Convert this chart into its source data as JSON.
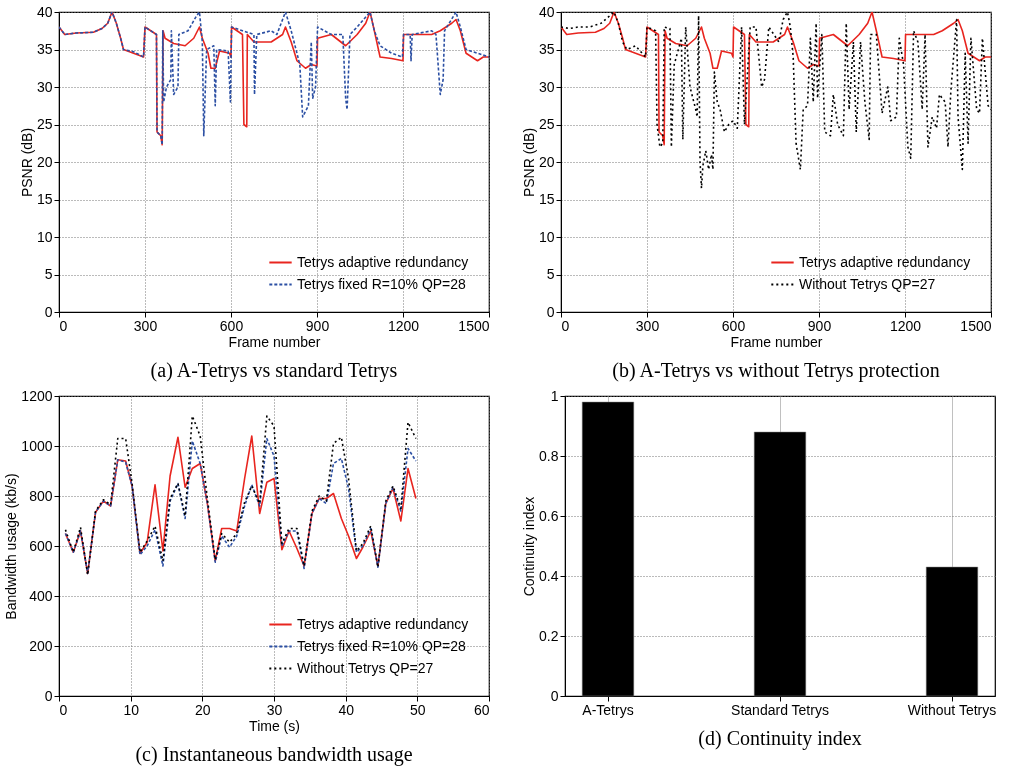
{
  "chart_data": [
    {
      "type": "line",
      "title": "(a) A-Tetrys vs standard Tetrys",
      "xlabel": "Frame number",
      "ylabel": "PSNR (dB)",
      "xlim": [
        0,
        1500
      ],
      "ylim": [
        0,
        40
      ],
      "xticks": [
        0,
        300,
        600,
        900,
        1200,
        1500
      ],
      "yticks": [
        0,
        5,
        10,
        15,
        20,
        25,
        30,
        35,
        40
      ],
      "grid": true,
      "legend": "bottom right",
      "series": [
        {
          "name": "Tetrys adaptive redundancy",
          "color": "#e8251f",
          "line_style": "solid",
          "x": [
            0,
            20,
            60,
            120,
            150,
            170,
            185,
            200,
            215,
            225,
            260,
            295,
            300,
            340,
            342,
            355,
            360,
            363,
            370,
            400,
            440,
            470,
            490,
            500,
            520,
            530,
            545,
            560,
            595,
            600,
            602,
            640,
            645,
            655,
            657,
            680,
            740,
            780,
            790,
            810,
            830,
            860,
            880,
            900,
            902,
            950,
            1000,
            1040,
            1070,
            1085,
            1100,
            1120,
            1160,
            1200,
            1202,
            1250,
            1300,
            1330,
            1370,
            1385,
            1400,
            1420,
            1460,
            1480,
            1500
          ],
          "values": [
            38,
            37,
            37.2,
            37.3,
            37.8,
            38.5,
            40,
            38.5,
            36.5,
            35,
            34.5,
            34,
            38,
            37,
            24,
            23.5,
            22.3,
            37.5,
            36.5,
            35.8,
            35.5,
            36.5,
            38,
            36.5,
            34.5,
            32.5,
            32.5,
            34.8,
            34.5,
            34,
            38,
            37,
            25,
            24.7,
            37,
            36,
            36,
            37,
            38,
            36,
            33.5,
            32.5,
            33,
            32.8,
            36.5,
            37,
            35.5,
            37,
            38.5,
            40,
            37.5,
            34,
            33.8,
            33.5,
            37,
            37,
            37,
            37.5,
            38.5,
            39,
            37.5,
            34.5,
            33.5,
            34,
            34
          ]
        },
        {
          "name": "Tetrys fixed R=10% QP=28",
          "color": "#2b4fa3",
          "line_style": "dashed",
          "x": [
            0,
            20,
            60,
            120,
            150,
            170,
            185,
            200,
            215,
            225,
            260,
            295,
            300,
            340,
            342,
            355,
            360,
            362,
            365,
            375,
            390,
            392,
            400,
            415,
            418,
            450,
            480,
            490,
            500,
            505,
            515,
            540,
            545,
            550,
            590,
            598,
            602,
            640,
            680,
            682,
            690,
            740,
            760,
            790,
            810,
            840,
            850,
            870,
            880,
            885,
            895,
            902,
            950,
            990,
            1000,
            1005,
            1015,
            1040,
            1085,
            1100,
            1120,
            1160,
            1198,
            1202,
            1225,
            1228,
            1232,
            1300,
            1315,
            1330,
            1340,
            1345,
            1385,
            1400,
            1420,
            1460,
            1500
          ],
          "values": [
            38,
            37,
            37.2,
            37.3,
            37.8,
            38.5,
            40,
            38.5,
            36.5,
            35,
            34.7,
            34,
            38,
            37,
            24,
            23.5,
            22.3,
            37.5,
            28,
            30,
            31,
            37.5,
            29,
            30,
            37,
            37.5,
            39.5,
            40,
            36,
            23.5,
            35,
            35.5,
            27.5,
            35,
            34.8,
            28,
            38,
            37.5,
            37,
            29,
            37,
            37.5,
            37,
            40,
            37.5,
            33,
            26,
            27.5,
            36,
            28.5,
            30,
            38,
            37,
            37,
            28.5,
            27,
            37,
            38,
            40,
            37.5,
            35.5,
            34.5,
            34,
            37,
            37,
            33.5,
            37,
            37.5,
            37,
            29,
            31,
            37.5,
            40,
            38,
            35,
            34.5,
            34
          ]
        }
      ]
    },
    {
      "type": "line",
      "title": "(b) A-Tetrys vs without Tetrys protection",
      "xlabel": "Frame number",
      "ylabel": "PSNR (dB)",
      "xlim": [
        0,
        1500
      ],
      "ylim": [
        0,
        40
      ],
      "xticks": [
        0,
        300,
        600,
        900,
        1200,
        1500
      ],
      "yticks": [
        0,
        5,
        10,
        15,
        20,
        25,
        30,
        35,
        40
      ],
      "grid": true,
      "legend": "bottom right",
      "series": [
        {
          "name": "Tetrys adaptive redundancy",
          "color": "#e8251f",
          "line_style": "solid",
          "x": [
            0,
            20,
            60,
            120,
            150,
            170,
            185,
            200,
            215,
            225,
            260,
            295,
            300,
            340,
            342,
            355,
            360,
            363,
            370,
            400,
            440,
            470,
            490,
            500,
            520,
            530,
            545,
            560,
            595,
            600,
            602,
            640,
            645,
            655,
            657,
            680,
            740,
            780,
            790,
            810,
            830,
            860,
            880,
            900,
            902,
            950,
            1000,
            1040,
            1070,
            1085,
            1100,
            1120,
            1160,
            1200,
            1202,
            1250,
            1300,
            1330,
            1370,
            1385,
            1400,
            1420,
            1460,
            1480,
            1500
          ],
          "values": [
            38,
            37,
            37.2,
            37.3,
            37.8,
            38.5,
            40,
            38.5,
            36.5,
            35,
            34.5,
            34,
            38,
            37,
            24,
            23.5,
            22.3,
            37.5,
            36.5,
            35.8,
            35.5,
            36.5,
            38,
            36.5,
            34.5,
            32.5,
            32.5,
            34.8,
            34.5,
            34,
            38,
            37,
            25,
            24.7,
            37,
            36,
            36,
            37,
            38,
            36,
            33.5,
            32.5,
            33,
            32.8,
            36.5,
            37,
            35.5,
            37,
            38.5,
            40,
            37.5,
            34,
            33.8,
            33.5,
            37,
            37,
            37,
            37.5,
            38.5,
            39,
            37.5,
            34.5,
            33.5,
            34,
            34
          ]
        },
        {
          "name": "Without Tetrys QP=27",
          "color": "#000000",
          "line_style": "dotted",
          "x": [
            0,
            30,
            60,
            100,
            140,
            185,
            200,
            215,
            230,
            260,
            295,
            300,
            330,
            335,
            345,
            355,
            360,
            380,
            385,
            395,
            420,
            425,
            435,
            450,
            470,
            475,
            480,
            485,
            490,
            495,
            505,
            515,
            525,
            530,
            535,
            545,
            555,
            570,
            585,
            600,
            615,
            630,
            640,
            660,
            680,
            700,
            710,
            725,
            760,
            775,
            790,
            800,
            810,
            820,
            835,
            845,
            860,
            870,
            880,
            890,
            895,
            910,
            920,
            940,
            950,
            965,
            985,
            995,
            1005,
            1020,
            1030,
            1045,
            1060,
            1075,
            1080,
            1100,
            1120,
            1140,
            1150,
            1170,
            1180,
            1195,
            1210,
            1220,
            1230,
            1245,
            1260,
            1270,
            1280,
            1295,
            1310,
            1320,
            1340,
            1350,
            1360,
            1380,
            1385,
            1400,
            1410,
            1420,
            1430,
            1450,
            1460,
            1470,
            1490,
            1500
          ],
          "values": [
            38,
            37.8,
            38,
            38,
            38.5,
            40,
            38.5,
            36,
            35,
            35.5,
            34,
            38,
            37.5,
            25,
            22,
            22.5,
            38,
            37.8,
            22,
            33,
            36.5,
            23,
            38,
            30,
            27,
            26,
            39.5,
            20,
            16.5,
            19.5,
            21.5,
            19,
            21,
            19,
            32,
            28,
            27,
            24,
            25,
            25.5,
            24.5,
            38,
            25,
            38,
            38,
            30,
            31,
            38,
            36,
            39,
            40,
            38,
            34,
            22.5,
            19,
            27,
            27.5,
            36.5,
            28,
            38.5,
            28.5,
            37,
            24,
            23.5,
            29,
            25,
            23.5,
            38.5,
            27,
            36,
            24,
            36,
            28,
            23,
            37,
            37,
            26.5,
            30,
            25.5,
            26,
            36.5,
            33,
            22,
            20.5,
            37.5,
            36,
            27,
            37,
            22,
            26,
            24.5,
            29,
            28,
            22,
            29.5,
            39,
            26,
            19,
            34.5,
            22.5,
            36.5,
            27,
            26.5,
            36.5,
            27.5,
            27
          ]
        }
      ]
    },
    {
      "type": "line",
      "title": "(c) Instantaneous bandwidth usage",
      "xlabel": "Time (s)",
      "ylabel": "Bandwidth usage (kb/s)",
      "xlim": [
        0,
        60
      ],
      "ylim": [
        0,
        1200
      ],
      "xticks": [
        0,
        10,
        20,
        30,
        40,
        50,
        60
      ],
      "yticks": [
        0,
        200,
        400,
        600,
        800,
        1000,
        1200
      ],
      "grid": true,
      "legend": "bottom right",
      "series": [
        {
          "name": "Tetrys adaptive redundancy",
          "color": "#e8251f",
          "line_style": "solid",
          "x": [
            0.9,
            2,
            3,
            4,
            5.1,
            6.2,
            7.2,
            8.2,
            9.3,
            10.2,
            11.3,
            12.3,
            13.4,
            14.5,
            15.5,
            16.6,
            17.6,
            18.6,
            19.7,
            20.7,
            21.8,
            22.7,
            23.8,
            24.8,
            25.9,
            26.9,
            28,
            29,
            30,
            31.1,
            32.1,
            33.2,
            34.2,
            35.3,
            36.3,
            37.3,
            38.3,
            39.4,
            40.4,
            41.5,
            42.4,
            43.5,
            44.5,
            45.6,
            46.6,
            47.7,
            48.7,
            49.8
          ],
          "values": [
            650,
            575,
            660,
            490,
            735,
            780,
            760,
            945,
            940,
            840,
            570,
            615,
            845,
            580,
            880,
            1035,
            835,
            910,
            930,
            770,
            540,
            670,
            670,
            660,
            870,
            1040,
            730,
            855,
            870,
            585,
            660,
            590,
            520,
            730,
            790,
            790,
            810,
            710,
            640,
            550,
            595,
            660,
            520,
            770,
            830,
            700,
            910,
            790
          ]
        },
        {
          "name": "Tetrys fixed R=10% QP=28",
          "color": "#2b4fa3",
          "line_style": "dashed",
          "x": [
            0.9,
            2,
            3,
            4,
            5.1,
            6.2,
            7.2,
            8.2,
            9.3,
            10.2,
            11.3,
            12.3,
            13.4,
            14.5,
            15.5,
            16.6,
            17.6,
            18.6,
            19.7,
            20.7,
            21.8,
            22.7,
            23.8,
            24.8,
            25.9,
            26.9,
            28,
            29,
            30,
            31.1,
            32.1,
            33.2,
            34.2,
            35.3,
            36.3,
            37.3,
            38.3,
            39.4,
            40.4,
            41.5,
            42.4,
            43.5,
            44.5,
            45.6,
            46.6,
            47.7,
            48.7,
            49.8
          ],
          "values": [
            650,
            575,
            660,
            490,
            735,
            780,
            760,
            945,
            935,
            840,
            565,
            600,
            665,
            520,
            780,
            850,
            710,
            1020,
            930,
            770,
            535,
            640,
            595,
            640,
            760,
            845,
            760,
            1030,
            960,
            600,
            660,
            660,
            510,
            730,
            790,
            770,
            930,
            950,
            830,
            575,
            600,
            670,
            515,
            770,
            835,
            740,
            990,
            940
          ]
        },
        {
          "name": "Without Tetrys QP=27",
          "color": "#000000",
          "line_style": "dotted",
          "x": [
            0.9,
            2,
            3,
            4,
            5.1,
            6.2,
            7.2,
            8.2,
            9.3,
            10.2,
            11.3,
            12.3,
            13.4,
            14.5,
            15.5,
            16.6,
            17.6,
            18.6,
            19.7,
            20.7,
            21.8,
            22.7,
            23.8,
            24.8,
            25.9,
            26.9,
            28,
            29,
            30,
            31.1,
            32.1,
            33.2,
            34.2,
            35.3,
            36.3,
            37.3,
            38.3,
            39.4,
            40.4,
            41.5,
            42.4,
            43.5,
            44.5,
            45.6,
            46.6,
            47.7,
            48.7,
            49.8
          ],
          "values": [
            665,
            575,
            675,
            485,
            740,
            785,
            765,
            1030,
            1030,
            850,
            575,
            620,
            680,
            540,
            790,
            850,
            720,
            1120,
            1040,
            790,
            545,
            650,
            615,
            650,
            775,
            840,
            770,
            1120,
            1080,
            610,
            670,
            670,
            520,
            740,
            800,
            780,
            1010,
            1035,
            870,
            580,
            610,
            680,
            515,
            780,
            840,
            750,
            1095,
            1030
          ]
        }
      ]
    },
    {
      "type": "bar",
      "title": "(d) Continuity index",
      "ylabel": "Continuity index",
      "categories": [
        "A-Tetrys",
        "Standard Tetrys",
        "Without Tetrys"
      ],
      "values": [
        0.98,
        0.88,
        0.43
      ],
      "color": "#000000",
      "ylim": [
        0,
        1
      ],
      "yticks": [
        0,
        0.2,
        0.4,
        0.6,
        0.8,
        1
      ],
      "grid": true
    }
  ]
}
